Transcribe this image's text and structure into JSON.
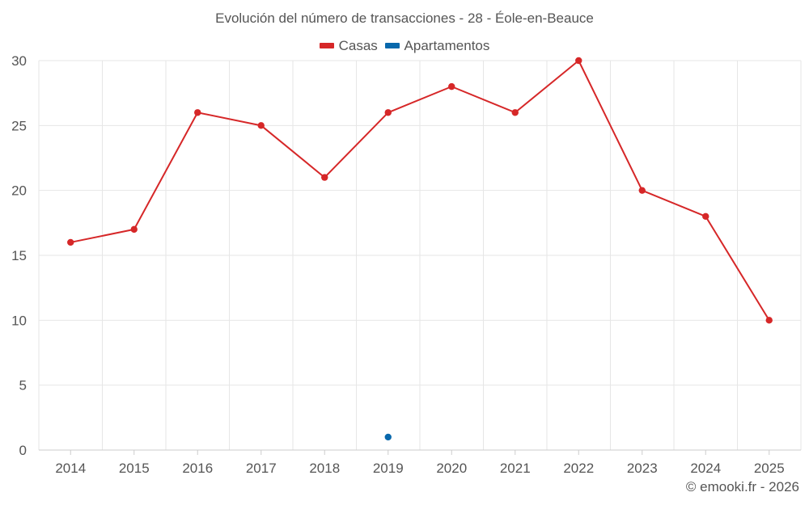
{
  "chart_data": {
    "type": "line",
    "title": "Evolución del número de transacciones - 28 - Éole-en-Beauce",
    "categories": [
      "2014",
      "2015",
      "2016",
      "2017",
      "2018",
      "2019",
      "2020",
      "2021",
      "2022",
      "2023",
      "2024",
      "2025"
    ],
    "series": [
      {
        "name": "Casas",
        "color": "#d62728",
        "values": [
          16,
          17,
          26,
          25,
          21,
          26,
          28,
          26,
          30,
          20,
          18,
          10
        ]
      },
      {
        "name": "Apartamentos",
        "color": "#0868ac",
        "values": [
          null,
          null,
          null,
          null,
          null,
          1,
          null,
          null,
          null,
          null,
          null,
          null
        ]
      }
    ],
    "ylim": [
      0,
      30
    ],
    "yticks": [
      0,
      5,
      10,
      15,
      20,
      25,
      30
    ],
    "grid": true,
    "legend_position": "top-center",
    "xlabel": "",
    "ylabel": ""
  },
  "legend": {
    "casas": "Casas",
    "apartamentos": "Apartamentos"
  },
  "credit": "© emooki.fr - 2026",
  "colors": {
    "casas": "#d62728",
    "apartamentos": "#0868ac",
    "grid": "#e6e6e6",
    "axis": "#cccccc"
  }
}
